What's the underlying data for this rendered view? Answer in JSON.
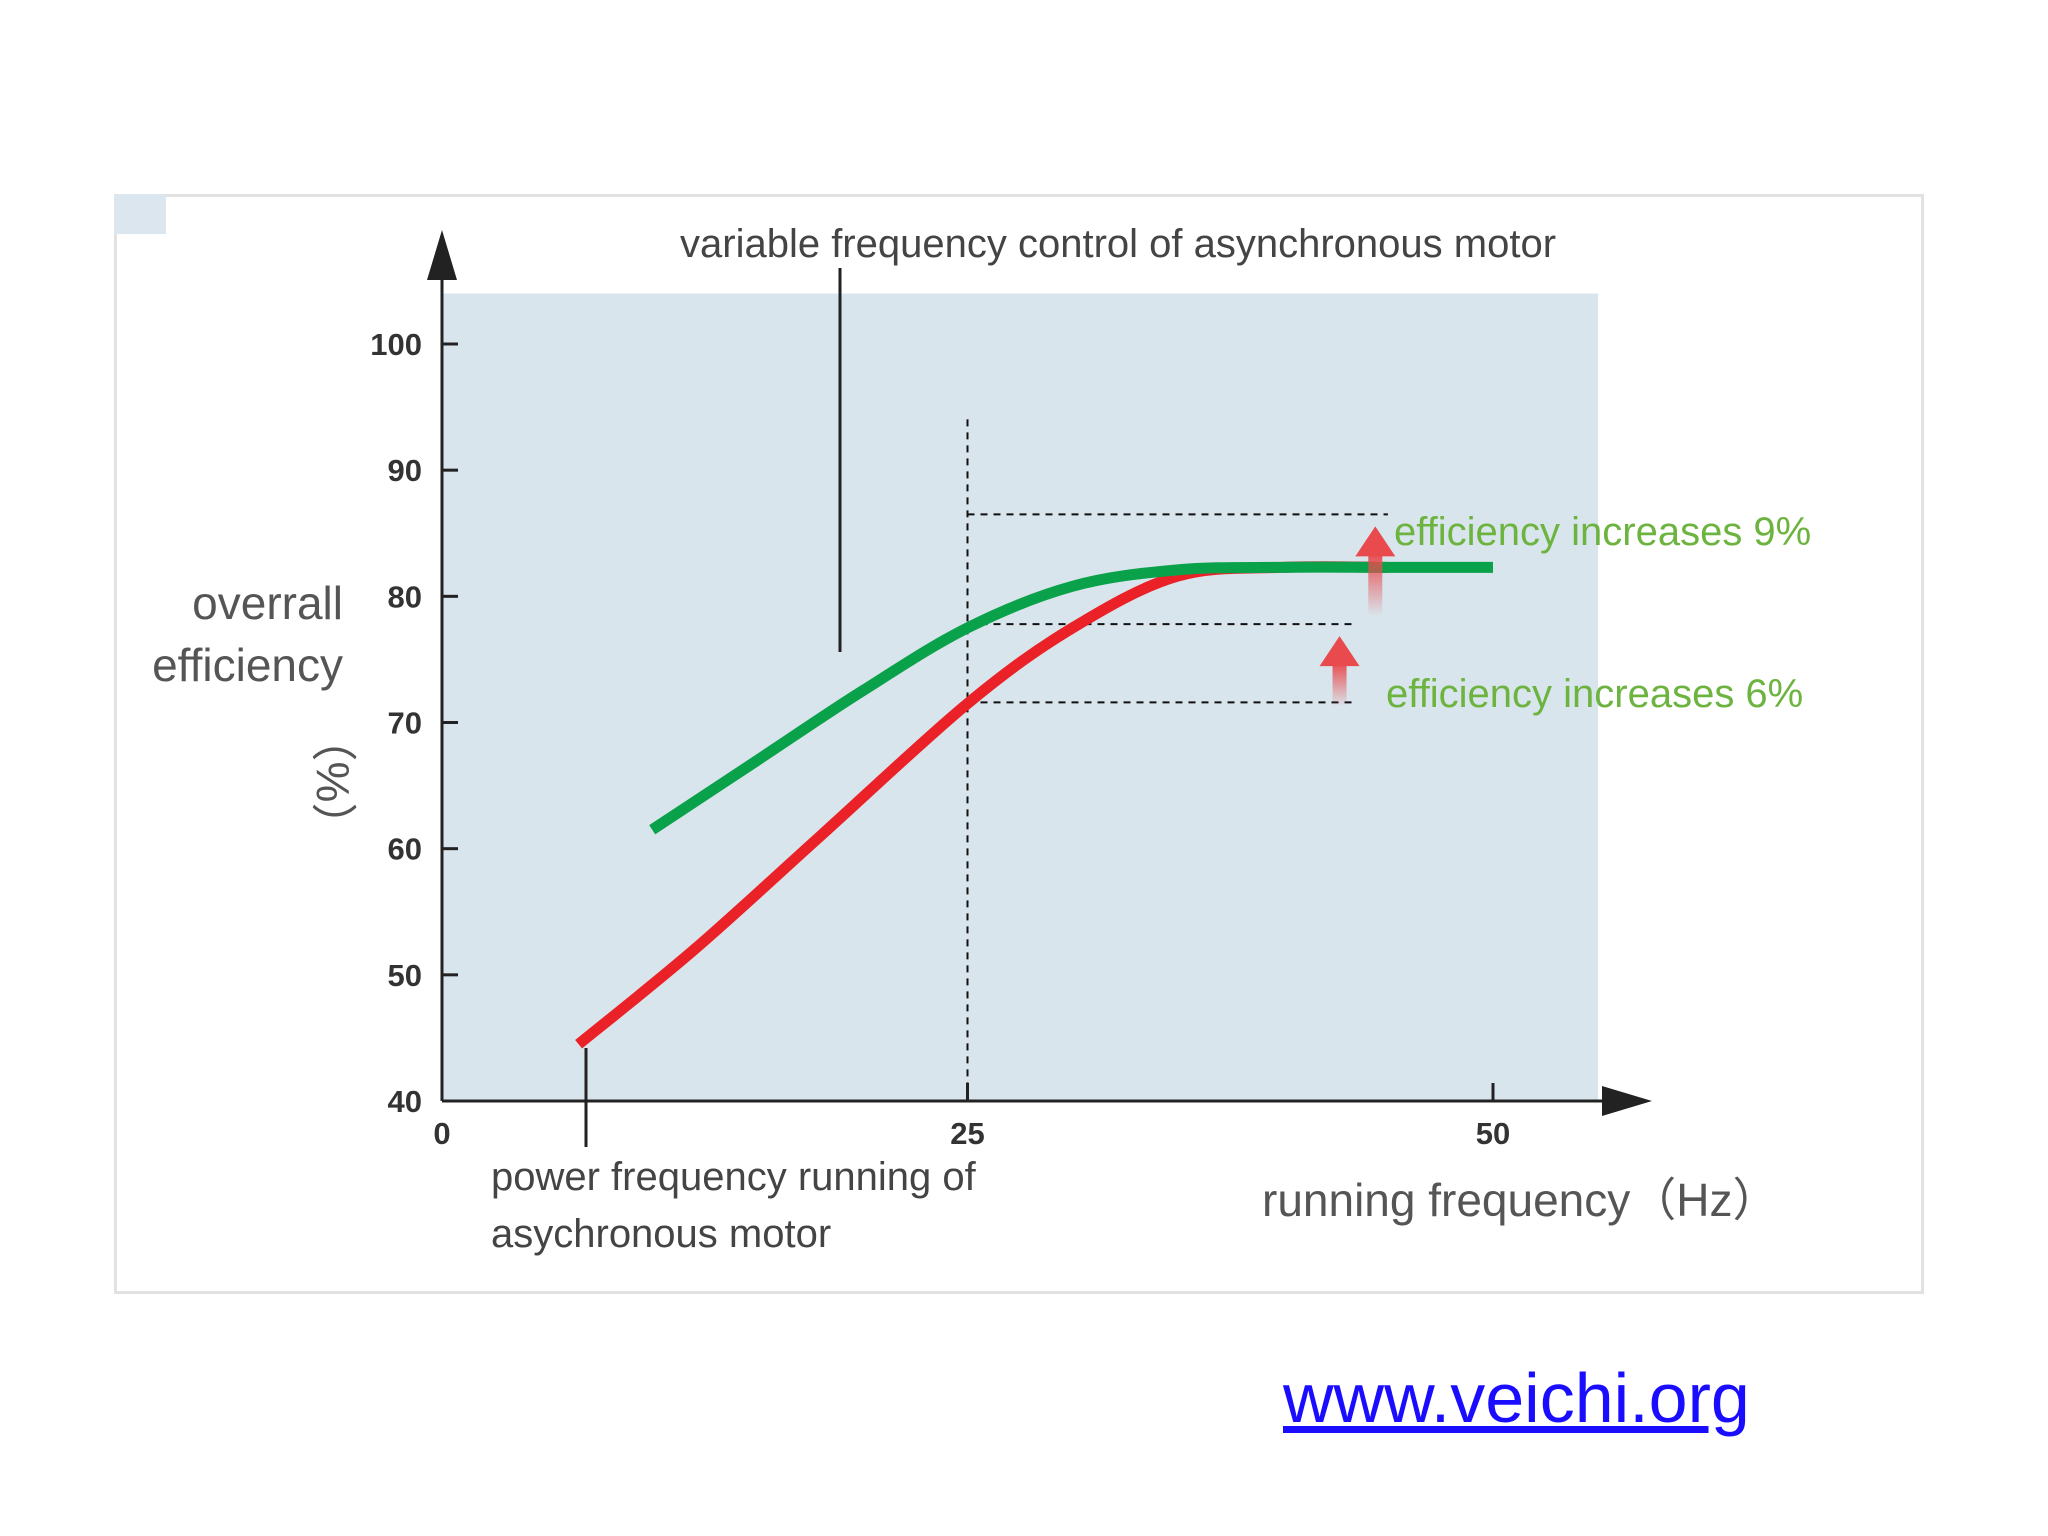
{
  "chart_data": {
    "type": "line",
    "title": "",
    "xlabel": "running frequency（Hz）",
    "ylabel_lines": [
      "overrall",
      "efficiency"
    ],
    "ylabel_unit": "（%）",
    "xlim": [
      0,
      55
    ],
    "ylim": [
      40,
      104
    ],
    "x_ticks": [
      0,
      25,
      50
    ],
    "y_ticks": [
      40,
      50,
      60,
      70,
      80,
      90,
      100
    ],
    "grid": false,
    "background_color": "#d9e5ec",
    "series": [
      {
        "name": "variable frequency control of asynchronous motor",
        "color": "#0aa14b",
        "x": [
          10,
          15,
          20,
          25,
          30,
          35,
          40,
          45,
          50
        ],
        "y": [
          61.5,
          67,
          72.5,
          77.5,
          80.8,
          82.1,
          82.3,
          82.3,
          82.3
        ]
      },
      {
        "name": "power frequency running of asychronous motor",
        "color": "#ea2127",
        "x": [
          6.5,
          12,
          18,
          25,
          30,
          35,
          40,
          45
        ],
        "y": [
          44.5,
          52,
          61,
          71.5,
          77.5,
          81.6,
          82.3,
          82.3
        ]
      }
    ],
    "annotations": {
      "green_label_lines": [
        "variable frequency control of asynchronous motor"
      ],
      "red_label_lines": [
        "power frequency running of",
        "asychronous motor"
      ],
      "increase_9": "efficiency increases 9%",
      "increase_6": "efficiency increases 6%",
      "ref_x": 25,
      "level_top": 86.5,
      "level_mid": 77.8,
      "level_low": 71.6
    }
  },
  "footer": {
    "url_text": "www.veichi.org"
  },
  "colors": {
    "arrow": "#e84a4e",
    "axis": "#222222",
    "green_text": "#6db33f",
    "link": "#1a0dff"
  }
}
